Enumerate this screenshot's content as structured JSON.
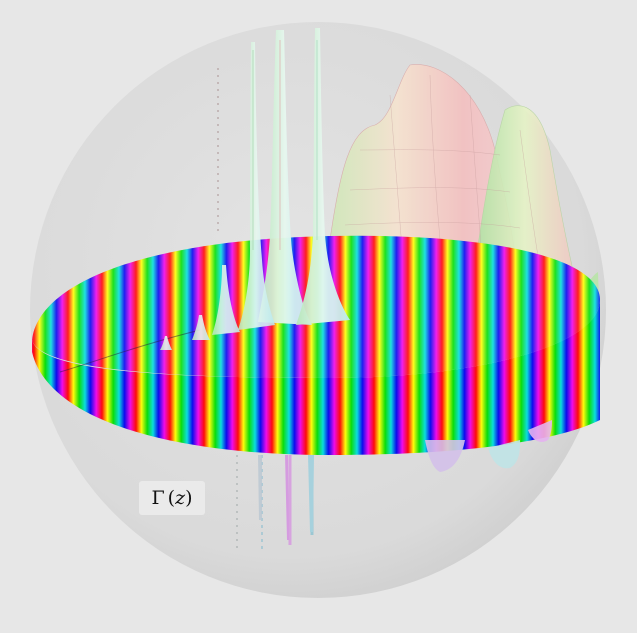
{
  "figure": {
    "label_function": "Γ",
    "label_arg_open": "(",
    "label_arg": "z",
    "label_arg_close": ")"
  },
  "colors": {
    "background": "#e7e7e7",
    "sphere_fill": "#dcdcdc",
    "sheet_pink": "#f3b8b8",
    "sheet_green": "#bfe3a9",
    "spike_cyan": "#c8eef3",
    "spike_magenta": "#e7a6ef"
  },
  "visual": {
    "phase_bands_on_disk": 24,
    "pole_count": 6,
    "large_sheet_count": 2
  }
}
